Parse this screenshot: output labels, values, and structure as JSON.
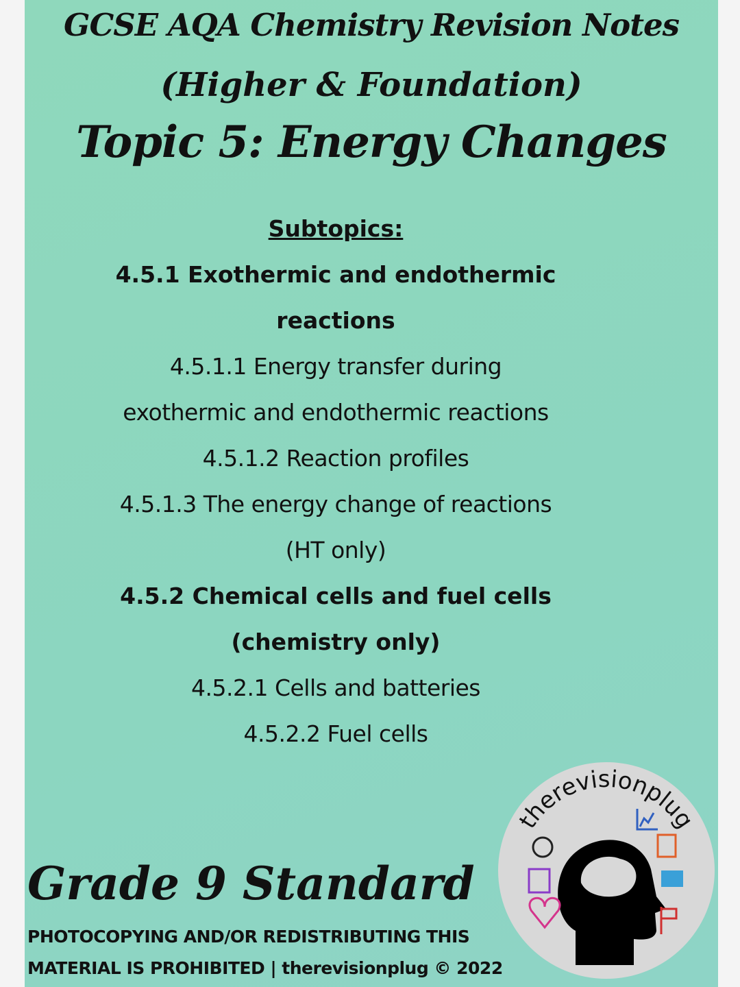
{
  "header": {
    "title": "GCSE AQA Chemistry Revision Notes",
    "subtitle": "(Higher & Foundation)",
    "topic": "Topic 5: Energy Changes"
  },
  "subtopics": {
    "heading": "Subtopics:",
    "sections": [
      {
        "title": "4.5.1 Exothermic and endothermic reactions",
        "items": [
          "4.5.1.1 Energy transfer during exothermic and endothermic reactions",
          "4.5.1.2 Reaction profiles",
          "4.5.1.3 The energy change of reactions (HT only)"
        ]
      },
      {
        "title": "4.5.2 Chemical cells and fuel cells (chemistry only)",
        "items": [
          "4.5.2.1 Cells and batteries",
          "4.5.2.2 Fuel cells"
        ]
      }
    ]
  },
  "footer": {
    "grade": "Grade 9 Standard",
    "notice": [
      "PHOTOCOPYING AND/OR REDISTRIBUTING THIS",
      "MATERIAL IS PROHIBITED | therevisionplug © 2022"
    ]
  },
  "logo": {
    "text": "therevisionplug"
  }
}
